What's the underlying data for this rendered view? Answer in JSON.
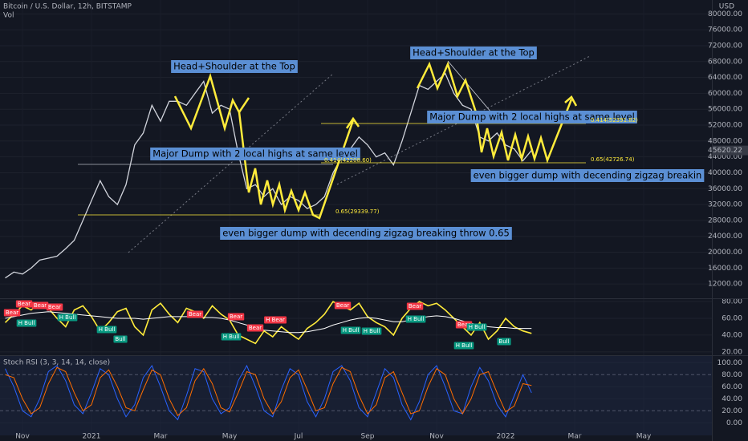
{
  "chart_data": [
    {
      "type": "line",
      "title": "Bitcoin / U.S. Dollar, 12h, BITSTAMP",
      "subtitle": "Vol",
      "y_unit": "USD",
      "grid": true,
      "categories": [
        null,
        null,
        "Nov",
        null,
        null,
        null,
        null,
        null,
        null,
        null,
        "2021",
        null,
        null,
        null,
        null,
        null,
        null,
        null,
        "Mar",
        null,
        null,
        null,
        null,
        null,
        null,
        null,
        "May",
        null,
        null,
        null,
        null,
        null,
        null,
        null,
        "Jul",
        null,
        null,
        null,
        null,
        null,
        null,
        null,
        "Sep",
        null,
        null,
        null,
        null,
        null,
        null,
        null,
        "Nov",
        null,
        null,
        null,
        null,
        null,
        null,
        null,
        "2022",
        null,
        null,
        null,
        null,
        null,
        null,
        null,
        "Mar",
        null,
        null,
        null,
        null,
        null,
        null,
        null,
        "May"
      ],
      "series": [
        {
          "color": "#d1d4dc",
          "values": [
            13500,
            15000,
            14500,
            16000,
            18000,
            18500,
            19000,
            20900,
            23000,
            28000,
            33000,
            38000,
            34000,
            32000,
            37000,
            47000,
            50000,
            57000,
            53000,
            58000,
            58000,
            57000,
            60000,
            63000,
            55000,
            57000,
            56000,
            45000,
            36000,
            37000,
            34000,
            36000,
            32000,
            34000,
            33000,
            31000,
            32000,
            34000,
            40000,
            44000,
            46000,
            49000,
            47000,
            44000,
            45000,
            42000,
            48000,
            55000,
            62000,
            61000,
            63000,
            65000,
            60000,
            57000,
            56000,
            49000,
            48000,
            50000,
            47000,
            46000,
            43000,
            45620.22,
            null,
            null,
            null,
            null,
            null,
            null,
            null,
            null,
            null,
            null,
            null,
            null,
            null
          ]
        }
      ],
      "last_value": 45620.22,
      "ylim": [
        8400,
        83500
      ],
      "yticks": [
        {
          "value": 80000,
          "label": "80000.00"
        },
        {
          "value": 76000,
          "label": "76000.00"
        },
        {
          "value": 72000,
          "label": "72000.00"
        },
        {
          "value": 68000,
          "label": "68000.00"
        },
        {
          "value": 64000,
          "label": "64000.00"
        },
        {
          "value": 60000,
          "label": "60000.00"
        },
        {
          "value": 56000,
          "label": "56000.00"
        },
        {
          "value": 52000,
          "label": "52000.00"
        },
        {
          "value": 48000,
          "label": "48000.00"
        },
        {
          "value": 44000,
          "label": "44000.00"
        },
        {
          "value": 40000,
          "label": "40000.00"
        },
        {
          "value": 36000,
          "label": "36000.00"
        },
        {
          "value": 32000,
          "label": "32000.00"
        },
        {
          "value": 28000,
          "label": "28000.00"
        },
        {
          "value": 24000,
          "label": "24000.00"
        },
        {
          "value": 20000,
          "label": "20000.00"
        },
        {
          "value": 16000,
          "label": "16000.00"
        },
        {
          "value": 12000,
          "label": "12000.00"
        }
      ],
      "annotations": [
        "Head+Shoulder at the Top",
        "Head+Shoulder at the Top",
        "Major Dump with 2 local highs at same level",
        "Major Dump with 2 local highs at same level",
        "even bigger dump with decending zigzag breaking throw 0.65",
        "even bigger dump with decending zigzag breakin"
      ],
      "fib_labels": [
        "0.65(29339.77)",
        "0.65(42726.74)",
        "0.414(42208.60)",
        "0.414(52391.82)"
      ]
    },
    {
      "type": "line",
      "series": [
        {
          "color": "#ffeb3b",
          "values": [
            55,
            65,
            75,
            70,
            78,
            72,
            60,
            50,
            70,
            75,
            62,
            45,
            55,
            68,
            72,
            50,
            40,
            70,
            78,
            65,
            55,
            72,
            68,
            60,
            75,
            65,
            58,
            40,
            35,
            30,
            45,
            38,
            50,
            42,
            35,
            48,
            55,
            65,
            80,
            75,
            70,
            78,
            62,
            55,
            50,
            40,
            60,
            72,
            80,
            75,
            78,
            70,
            60,
            50,
            40,
            55,
            35,
            45,
            60,
            50,
            45,
            42
          ]
        },
        {
          "color": "#ffffff",
          "values": [
            60,
            62,
            64,
            66,
            67,
            68,
            67,
            66,
            65,
            64,
            63,
            62,
            61,
            60,
            60,
            60,
            59,
            60,
            61,
            62,
            62,
            62,
            62,
            61,
            61,
            60,
            58,
            55,
            52,
            48,
            46,
            45,
            44,
            43,
            43,
            44,
            46,
            48,
            52,
            55,
            58,
            60,
            61,
            60,
            58,
            56,
            56,
            58,
            60,
            62,
            63,
            62,
            60,
            57,
            54,
            52,
            50,
            49,
            49,
            48,
            48,
            48
          ]
        }
      ],
      "ylim": [
        16,
        83
      ],
      "yticks": [
        {
          "value": 80,
          "label": "80.00"
        },
        {
          "value": 60,
          "label": "60.00"
        },
        {
          "value": 40,
          "label": "40.00"
        },
        {
          "value": 20,
          "label": "20.00"
        }
      ],
      "signals": [
        {
          "text": "Bear",
          "color": "#f23645"
        },
        {
          "text": "Bear",
          "color": "#f23645"
        },
        {
          "text": "Bear",
          "color": "#f23645"
        },
        {
          "text": "Bear",
          "color": "#f23645"
        },
        {
          "text": "H Bull",
          "color": "#089981"
        },
        {
          "text": "H Bull",
          "color": "#089981"
        },
        {
          "text": "H Bull",
          "color": "#089981"
        },
        {
          "text": "Bull",
          "color": "#089981"
        },
        {
          "text": "Bear",
          "color": "#f23645"
        },
        {
          "text": "Bear",
          "color": "#f23645"
        },
        {
          "text": "H Bull",
          "color": "#089981"
        },
        {
          "text": "H Bear",
          "color": "#f23645"
        },
        {
          "text": "Bear",
          "color": "#f23645"
        },
        {
          "text": "H Bull",
          "color": "#089981"
        },
        {
          "text": "Bear",
          "color": "#f23645"
        },
        {
          "text": "H Bull",
          "color": "#089981"
        },
        {
          "text": "Bear",
          "color": "#f23645"
        },
        {
          "text": "H Bull",
          "color": "#089981"
        },
        {
          "text": "Bear",
          "color": "#f23645"
        },
        {
          "text": "H Bull",
          "color": "#089981"
        },
        {
          "text": "Bull",
          "color": "#089981"
        },
        {
          "text": "H Bull",
          "color": "#089981"
        }
      ]
    },
    {
      "type": "line",
      "title": "Stoch RSI (3, 3, 14, 14, close)",
      "series": [
        {
          "color": "#2962ff",
          "values": [
            90,
            60,
            20,
            10,
            40,
            85,
            95,
            70,
            30,
            15,
            50,
            90,
            80,
            40,
            10,
            30,
            75,
            95,
            60,
            20,
            5,
            45,
            90,
            85,
            40,
            15,
            25,
            70,
            95,
            60,
            20,
            10,
            55,
            90,
            80,
            35,
            10,
            40,
            85,
            95,
            70,
            25,
            10,
            50,
            90,
            75,
            30,
            5,
            35,
            80,
            95,
            60,
            20,
            15,
            60,
            92,
            70,
            30,
            10,
            45,
            80,
            50
          ]
        },
        {
          "color": "#ff6d00",
          "values": [
            80,
            75,
            40,
            15,
            25,
            65,
            92,
            85,
            50,
            20,
            30,
            75,
            88,
            60,
            25,
            20,
            55,
            88,
            80,
            40,
            12,
            25,
            70,
            90,
            65,
            25,
            18,
            50,
            85,
            80,
            40,
            15,
            35,
            75,
            88,
            55,
            20,
            25,
            65,
            92,
            85,
            45,
            15,
            30,
            75,
            85,
            50,
            15,
            20,
            60,
            90,
            80,
            40,
            15,
            40,
            80,
            85,
            50,
            18,
            28,
            65,
            62
          ]
        }
      ],
      "ylim": [
        -21,
        111
      ],
      "yticks": [
        {
          "value": 100,
          "label": "100.00"
        },
        {
          "value": 80,
          "label": "80.00"
        },
        {
          "value": 60,
          "label": "60.00"
        },
        {
          "value": 40,
          "label": "40.00"
        },
        {
          "value": 20,
          "label": "20.00"
        },
        {
          "value": 0,
          "label": "0.00"
        }
      ]
    }
  ]
}
